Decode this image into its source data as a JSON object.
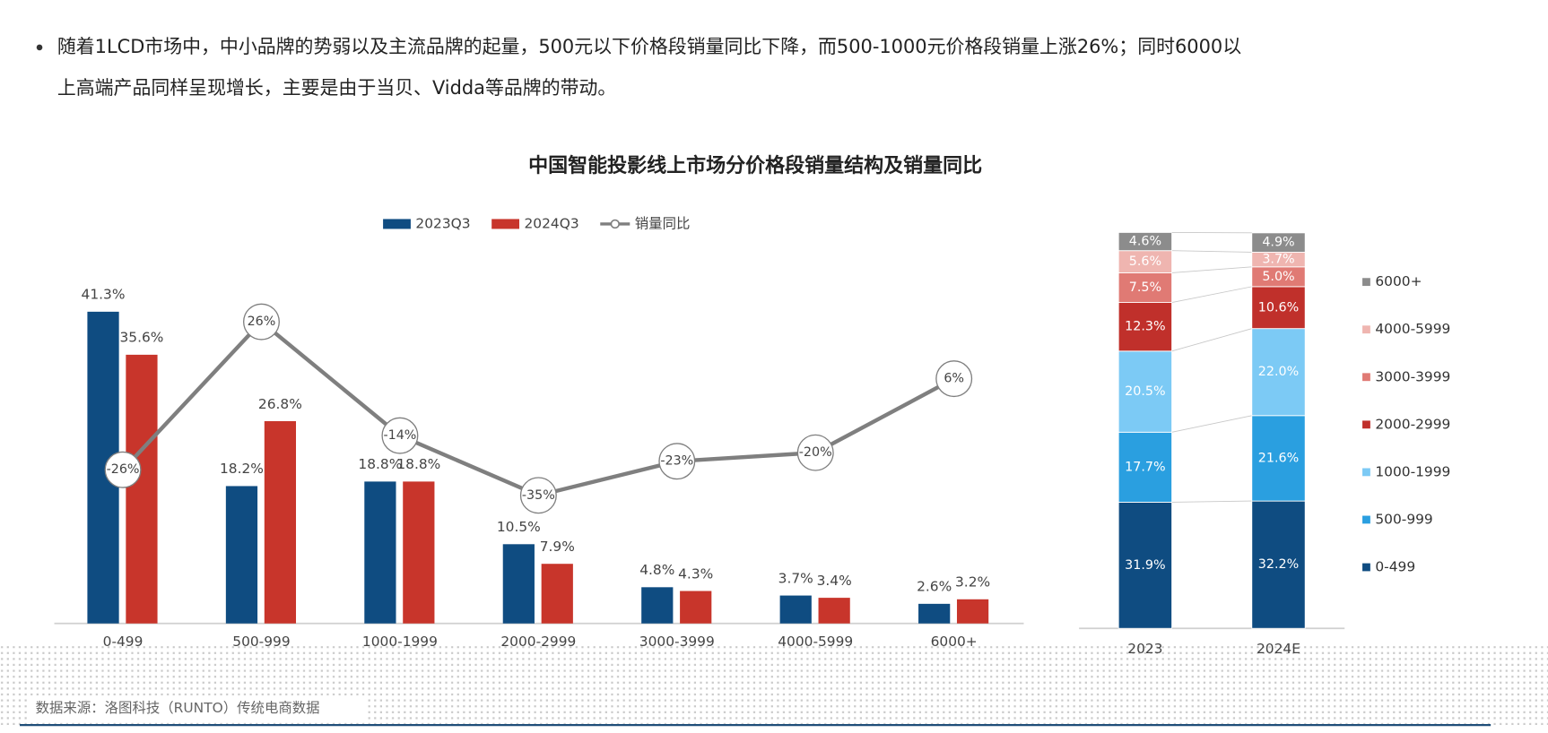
{
  "bullet": [
    "随着1LCD市场中，中小品牌的势弱以及主流品牌的起量，500元以下价格段销量同比下降，而500-1000元价格段销量上涨26%；同时6000以",
    "上高端产品同样呈现增长，主要是由于当贝、Vidda等品牌的带动。"
  ],
  "source": "数据来源：洛图科技（RUNTO）传统电商数据",
  "chart_data": [
    {
      "type": "bar",
      "title": "中国智能投影线上市场分价格段销量结构及销量同比",
      "categories": [
        "0-499",
        "500-999",
        "1000-1999",
        "2000-2999",
        "3000-3999",
        "4000-5999",
        "6000+"
      ],
      "ylim": [
        0,
        46
      ],
      "y2lim": [
        -80,
        42
      ],
      "legend": "top",
      "series": [
        {
          "name": "2023Q3",
          "color": "#0f4c81",
          "values": [
            41.3,
            18.2,
            18.8,
            10.5,
            4.8,
            3.7,
            2.6
          ],
          "value_labels": [
            "41.3%",
            "18.2%",
            "18.8%",
            "10.5%",
            "4.8%",
            "3.7%",
            "2.6%"
          ]
        },
        {
          "name": "2024Q3",
          "color": "#c8352b",
          "values": [
            35.6,
            26.8,
            18.8,
            7.9,
            4.3,
            3.4,
            3.2
          ],
          "value_labels": [
            "35.6%",
            "26.8%",
            "18.8%",
            "7.9%",
            "4.3%",
            "3.4%",
            "3.2%"
          ]
        },
        {
          "name": "销量同比",
          "type": "line",
          "axis": "y2",
          "color": "#7f7f7f",
          "values": [
            -26,
            26,
            -14,
            -35,
            -23,
            -20,
            6
          ],
          "value_labels": [
            "-26%",
            "26%",
            "-14%",
            "-35%",
            "-23%",
            "-20%",
            "6%"
          ]
        }
      ]
    },
    {
      "type": "stacked_bar",
      "categories": [
        "2023",
        "2024E"
      ],
      "ylim": [
        0,
        100
      ],
      "legend": "right",
      "series": [
        {
          "name": "0-499",
          "color": "#0f4c81",
          "values": [
            31.9,
            32.2
          ],
          "value_labels": [
            "31.9%",
            "32.2%"
          ]
        },
        {
          "name": "500-999",
          "color": "#2a9fe0",
          "values": [
            17.7,
            21.6
          ],
          "value_labels": [
            "17.7%",
            "21.6%"
          ]
        },
        {
          "name": "1000-1999",
          "color": "#7ccaf5",
          "values": [
            20.5,
            22.0
          ],
          "value_labels": [
            "20.5%",
            "22.0%"
          ]
        },
        {
          "name": "2000-2999",
          "color": "#c0302b",
          "values": [
            12.3,
            10.6
          ],
          "value_labels": [
            "12.3%",
            "10.6%"
          ]
        },
        {
          "name": "3000-3999",
          "color": "#e07a74",
          "values": [
            7.5,
            5.0
          ],
          "value_labels": [
            "7.5%",
            "5.0%"
          ]
        },
        {
          "name": "4000-5999",
          "color": "#efb5b0",
          "values": [
            5.6,
            3.7
          ],
          "value_labels": [
            "5.6%",
            "3.7%"
          ]
        },
        {
          "name": "6000+",
          "color": "#8c8c8c",
          "values": [
            4.6,
            4.9
          ],
          "value_labels": [
            "4.6%",
            "4.9%"
          ]
        }
      ]
    }
  ]
}
